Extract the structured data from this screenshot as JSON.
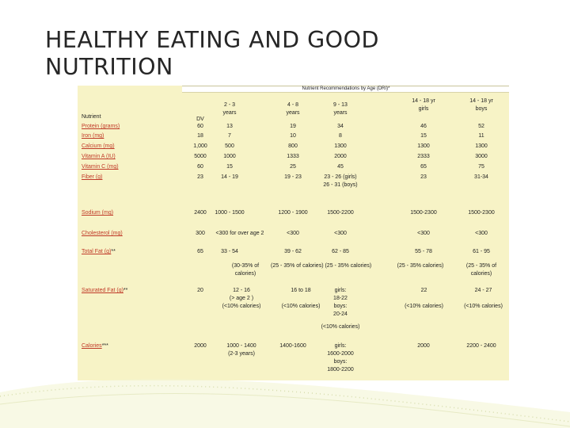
{
  "title_line1": "HEALTHY EATING AND GOOD",
  "title_line2": "NUTRITION",
  "table": {
    "group_header": "Nutrient Recommendations by Age (DRI)*",
    "col_headers": {
      "nutrient": "Nutrient",
      "dv": "DV",
      "a23": [
        "2 - 3",
        "years"
      ],
      "a48": [
        "4 - 8",
        "years"
      ],
      "a913": [
        "9 - 13",
        "years"
      ],
      "girls": [
        "14 - 18 yr",
        "girls"
      ],
      "boys": [
        "14 - 18 yr",
        "boys"
      ]
    },
    "labels": {
      "protein": "Protein (grams)",
      "iron": "Iron (mg)",
      "calcium": "Calcium (mg)",
      "vita": "Vitamin A (IU)",
      "vitc": "Vitamin C (mg)",
      "fiber": "Fiber (g)",
      "sodium": "Sodium (mg)",
      "cholesterol": "Cholesterol (mg)",
      "totalfat": "Total Fat (g)",
      "totalfat_mark": "**",
      "satfat": "Saturated Fat (g)",
      "satfat_mark": "**",
      "calories": "Calories",
      "calories_mark": "***"
    },
    "rows": {
      "protein": [
        "60",
        "13",
        "19",
        "34",
        "46",
        "52"
      ],
      "iron": [
        "18",
        "7",
        "10",
        "8",
        "15",
        "11"
      ],
      "calcium": [
        "1,000",
        "500",
        "800",
        "1300",
        "1300",
        "1300"
      ],
      "vita": [
        "5000",
        "1000",
        "1333",
        "2000",
        "2333",
        "3000"
      ],
      "vitc": [
        "60",
        "15",
        "25",
        "45",
        "65",
        "75"
      ],
      "fiber": [
        "23",
        "14 - 19",
        "19 - 23",
        "23 - 26 (girls)",
        "23",
        "31-34"
      ],
      "fiber_extra": "26 - 31 (boys)",
      "sodium": [
        "2400",
        "1000 - 1500",
        "1200 - 1900",
        "1500-2200",
        "1500-2300",
        "1500-2300"
      ],
      "cholesterol": [
        "300",
        "<300 for over age 2",
        "<300",
        "<300",
        "<300",
        "<300"
      ],
      "totalfat": [
        "65",
        "33 - 54",
        "39 - 62",
        "62 - 85",
        "55 - 78",
        "61 - 95"
      ],
      "totalfat_notes": {
        "a23": [
          "(30-35% of",
          "calories)"
        ],
        "a48_913": "(25 - 35% of calories)  (25 - 35% calories)",
        "girls": "(25 - 35% calories)",
        "boys": [
          "(25 - 35% of",
          "calories)"
        ]
      },
      "satfat": {
        "dv": "20",
        "a23": [
          "12 - 16",
          "(> age 2 )",
          "(<10% calories)"
        ],
        "a48": [
          "16 to 18",
          "(<10% calories)"
        ],
        "a913": [
          "girls:",
          "18-22",
          "boys:",
          "20-24"
        ],
        "girls": [
          "22",
          "(<10% calories)"
        ],
        "boys": [
          "24 - 27",
          "(<10% calories)"
        ],
        "note": "(<10% calories)"
      },
      "calories": {
        "dv": "2000",
        "a23": [
          "1000 - 1400",
          "(2-3 years)"
        ],
        "a48": "1400-1600",
        "a913": [
          "girls:",
          "1600-2000",
          "boys:",
          "1800-2200"
        ],
        "girls": "2000",
        "boys": "2200 - 2400"
      }
    }
  }
}
